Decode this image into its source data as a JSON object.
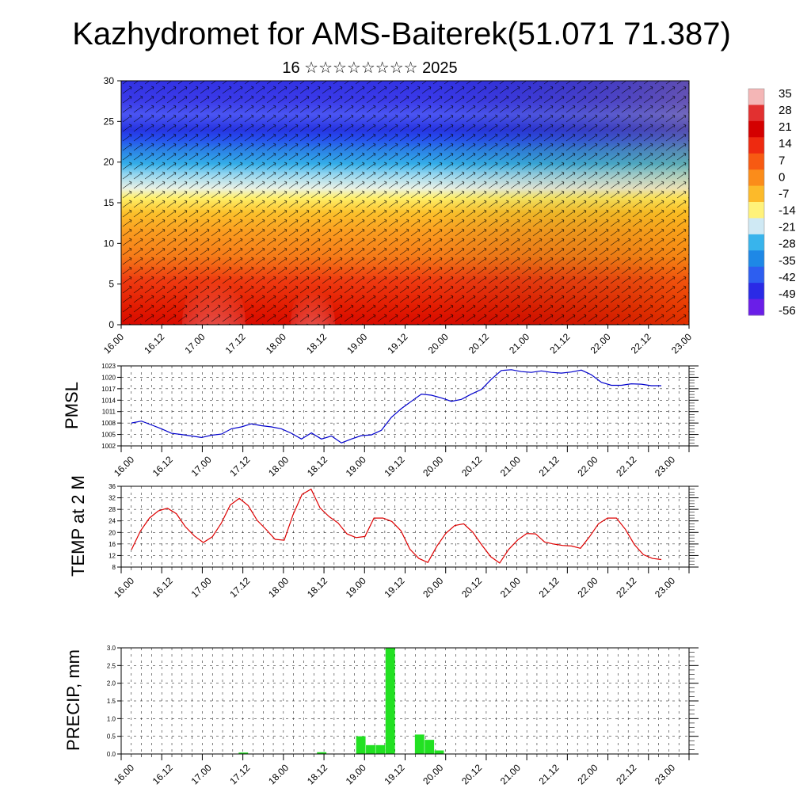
{
  "title": "Kazhydromet for AMS-Baiterek(51.071 71.387)",
  "subtitle": "16 ☆☆☆☆☆☆☆☆ 2025",
  "time_labels": [
    "16.00",
    "16.12",
    "17.00",
    "17.12",
    "18.00",
    "18.12",
    "19.00",
    "19.12",
    "20.00",
    "20.12",
    "21.00",
    "21.12",
    "22.00",
    "22.12",
    "23.00"
  ],
  "colorbar": {
    "labels": [
      "35",
      "28",
      "21",
      "14",
      "7",
      "0",
      "-7",
      "-14",
      "-21",
      "-28",
      "-35",
      "-42",
      "-49",
      "-56"
    ],
    "colors": [
      "#f4b6b6",
      "#e23030",
      "#d40000",
      "#ee2a10",
      "#f75a12",
      "#fb8c1a",
      "#fcba2a",
      "#fff27a",
      "#cfe9f4",
      "#38b4ec",
      "#1e88e6",
      "#2d5ef0",
      "#2a2ae6",
      "#6a1ee8"
    ]
  },
  "chart_data": [
    {
      "type": "heatmap",
      "title": "",
      "xlabel": "",
      "ylabel": "",
      "y_ticks": [
        "0",
        "5",
        "10",
        "15",
        "20",
        "25",
        "30"
      ],
      "ylim": [
        0,
        30
      ],
      "x_ticks": [
        "16.00",
        "16.12",
        "17.00",
        "17.12",
        "18.00",
        "18.12",
        "19.00",
        "19.12",
        "20.00",
        "20.12",
        "21.00",
        "21.12",
        "22.00",
        "22.12",
        "23.00"
      ],
      "value_range": [
        -56,
        35
      ],
      "overlay": "wind barbs",
      "description_levels": [
        {
          "level": 0,
          "approx_value": 21
        },
        {
          "level": 10,
          "approx_value": 0
        },
        {
          "level": 16,
          "approx_value": -14
        },
        {
          "level": 22,
          "approx_value": -42
        },
        {
          "level": 27,
          "approx_value": -56
        }
      ]
    },
    {
      "type": "line",
      "ylabel": "PMSL",
      "y_ticks": [
        "1002",
        "1005",
        "1008",
        "1011",
        "1014",
        "1017",
        "1020",
        "1023"
      ],
      "ylim": [
        1002,
        1023
      ],
      "x_ticks": [
        "16.00",
        "16.12",
        "17.00",
        "17.12",
        "18.00",
        "18.12",
        "19.00",
        "19.12",
        "20.00",
        "20.12",
        "21.00",
        "21.12",
        "22.00",
        "22.12",
        "23.00"
      ],
      "series": [
        {
          "color": "#0000cc",
          "values": [
            1008,
            1008.5,
            1007.5,
            1006.5,
            1005.3,
            1005,
            1004.6,
            1004.2,
            1004.8,
            1005.1,
            1006.5,
            1007,
            1007.8,
            1007.3,
            1007,
            1006.5,
            1005.3,
            1003.8,
            1005.4,
            1003.8,
            1004.6,
            1002.8,
            1003.8,
            1004.7,
            1004.9,
            1006.1,
            1009.5,
            1011.8,
            1013.7,
            1015.6,
            1015.3,
            1014.6,
            1013.7,
            1014.2,
            1015.6,
            1016.8,
            1019.5,
            1021.8,
            1022,
            1021.5,
            1021.3,
            1021.7,
            1021.3,
            1021.1,
            1021.4,
            1021.9,
            1020.7,
            1018.7,
            1017.9,
            1017.9,
            1018.3,
            1018.2,
            1017.8,
            1017.8
          ]
        }
      ]
    },
    {
      "type": "line",
      "ylabel": "TEMP at 2 M",
      "y_ticks": [
        "8",
        "12",
        "16",
        "20",
        "24",
        "28",
        "32",
        "36"
      ],
      "ylim": [
        8,
        36
      ],
      "x_ticks": [
        "16.00",
        "16.12",
        "17.00",
        "17.12",
        "18.00",
        "18.12",
        "19.00",
        "19.12",
        "20.00",
        "20.12",
        "21.00",
        "21.12",
        "22.00",
        "22.12",
        "23.00"
      ],
      "series": [
        {
          "color": "#dd0000",
          "values": [
            14,
            20.5,
            25,
            27.5,
            28.4,
            26.5,
            22,
            18.8,
            16.5,
            18.5,
            23.2,
            29.5,
            31.8,
            29.3,
            24.2,
            21,
            17.6,
            17.3,
            26.2,
            33.2,
            35,
            28.5,
            25.5,
            23.3,
            19.5,
            18.2,
            18.6,
            25,
            25,
            23.8,
            20.6,
            14.2,
            11,
            9.6,
            15.2,
            19.7,
            22.4,
            23,
            20.1,
            15.7,
            11.6,
            9.4,
            14.1,
            17.4,
            19.6,
            19.5,
            16.7,
            16,
            15.5,
            15.3,
            14.5,
            18.5,
            23,
            25,
            25,
            21.1,
            15.8,
            12.3,
            11,
            10.6
          ]
        }
      ]
    },
    {
      "type": "bar",
      "ylabel": "PRECIP, mm",
      "y_ticks": [
        "0.0",
        "0.5",
        "1.0",
        "1.5",
        "2.0",
        "2.5",
        "3.0"
      ],
      "ylim": [
        0,
        3.0
      ],
      "x_ticks": [
        "16.00",
        "16.12",
        "17.00",
        "17.12",
        "18.00",
        "18.12",
        "19.00",
        "19.12",
        "20.00",
        "20.12",
        "21.00",
        "21.12",
        "22.00",
        "22.12",
        "23.00"
      ],
      "series": [
        {
          "color": "#22e122",
          "values": [
            0,
            0,
            0,
            0,
            0,
            0,
            0,
            0,
            0,
            0,
            0,
            0,
            0.04,
            0,
            0,
            0,
            0,
            0,
            0,
            0,
            0.05,
            0,
            0,
            0,
            0.5,
            0.25,
            0.25,
            3.0,
            0,
            0,
            0.55,
            0.4,
            0.1,
            0,
            0,
            0,
            0,
            0,
            0,
            0,
            0,
            0,
            0,
            0,
            0,
            0,
            0,
            0,
            0,
            0,
            0,
            0,
            0,
            0,
            0,
            0,
            0,
            0
          ]
        }
      ]
    }
  ]
}
